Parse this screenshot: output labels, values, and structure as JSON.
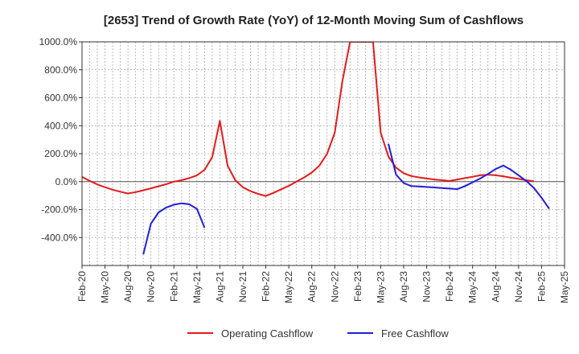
{
  "chart_data": {
    "type": "line",
    "title": "[2653]  Trend of Growth Rate (YoY) of 12-Month Moving Sum of Cashflows",
    "xlabel": "",
    "ylabel": "",
    "ylim": [
      -600,
      1000
    ],
    "y_ticks": [
      1000,
      800,
      600,
      400,
      200,
      0,
      -200,
      -400
    ],
    "y_tick_labels": [
      "1000.0%",
      "800.0%",
      "600.0%",
      "400.0%",
      "200.0%",
      "0.0%",
      "-200.0%",
      "-400.0%"
    ],
    "x_tick_labels": [
      "Feb-20",
      "May-20",
      "Aug-20",
      "Nov-20",
      "Feb-21",
      "May-21",
      "Aug-21",
      "Nov-21",
      "Feb-22",
      "May-22",
      "Aug-22",
      "Nov-22",
      "Feb-23",
      "May-23",
      "Aug-23",
      "Nov-23",
      "Feb-24",
      "May-24",
      "Aug-24",
      "Nov-24",
      "Feb-25",
      "May-25"
    ],
    "grid": true,
    "legend_position": "bottom",
    "series": [
      {
        "name": "Operating Cashflow",
        "color": "#e31a1c",
        "points": [
          [
            "2020-02",
            35
          ],
          [
            "2020-03",
            5
          ],
          [
            "2020-04",
            -20
          ],
          [
            "2020-05",
            -40
          ],
          [
            "2020-06",
            -58
          ],
          [
            "2020-07",
            -72
          ],
          [
            "2020-08",
            -85
          ],
          [
            "2020-09",
            -75
          ],
          [
            "2020-10",
            -62
          ],
          [
            "2020-11",
            -48
          ],
          [
            "2020-12",
            -33
          ],
          [
            "2021-01",
            -18
          ],
          [
            "2021-02",
            0
          ],
          [
            "2021-03",
            10
          ],
          [
            "2021-04",
            25
          ],
          [
            "2021-05",
            45
          ],
          [
            "2021-06",
            85
          ],
          [
            "2021-07",
            175
          ],
          [
            "2021-08",
            435
          ],
          [
            "2021-09",
            115
          ],
          [
            "2021-10",
            10
          ],
          [
            "2021-11",
            -40
          ],
          [
            "2021-12",
            -68
          ],
          [
            "2022-01",
            -88
          ],
          [
            "2022-02",
            -103
          ],
          [
            "2022-03",
            -80
          ],
          [
            "2022-04",
            -55
          ],
          [
            "2022-05",
            -30
          ],
          [
            "2022-06",
            0
          ],
          [
            "2022-07",
            30
          ],
          [
            "2022-08",
            65
          ],
          [
            "2022-09",
            115
          ],
          [
            "2022-10",
            200
          ],
          [
            "2022-11",
            350
          ],
          [
            "2022-12",
            720
          ],
          [
            "2023-01",
            1000
          ],
          [
            "2023-02",
            1000
          ],
          [
            "2023-03",
            1000
          ],
          [
            "2023-04",
            1000
          ],
          [
            "2023-05",
            350
          ],
          [
            "2023-06",
            180
          ],
          [
            "2023-07",
            100
          ],
          [
            "2023-08",
            60
          ],
          [
            "2023-09",
            40
          ],
          [
            "2023-10",
            30
          ],
          [
            "2023-11",
            22
          ],
          [
            "2023-12",
            15
          ],
          [
            "2024-01",
            10
          ],
          [
            "2024-02",
            5
          ],
          [
            "2024-03",
            15
          ],
          [
            "2024-04",
            25
          ],
          [
            "2024-05",
            35
          ],
          [
            "2024-06",
            45
          ],
          [
            "2024-07",
            50
          ],
          [
            "2024-08",
            45
          ],
          [
            "2024-09",
            38
          ],
          [
            "2024-10",
            28
          ],
          [
            "2024-11",
            20
          ],
          [
            "2024-12",
            10
          ],
          [
            "2025-01",
            2
          ]
        ]
      },
      {
        "name": "Free Cashflow",
        "color": "#1f1fd6",
        "segments": [
          [
            [
              "2020-10",
              -520
            ],
            [
              "2020-11",
              -300
            ],
            [
              "2020-12",
              -220
            ],
            [
              "2021-01",
              -185
            ],
            [
              "2021-02",
              -165
            ],
            [
              "2021-03",
              -155
            ],
            [
              "2021-04",
              -162
            ],
            [
              "2021-05",
              -195
            ],
            [
              "2021-06",
              -330
            ]
          ],
          [
            [
              "2023-06",
              270
            ],
            [
              "2023-07",
              50
            ],
            [
              "2023-08",
              -10
            ],
            [
              "2023-09",
              -32
            ],
            [
              "2023-10",
              -35
            ],
            [
              "2023-11",
              -38
            ],
            [
              "2023-12",
              -42
            ],
            [
              "2024-01",
              -46
            ],
            [
              "2024-02",
              -50
            ],
            [
              "2024-03",
              -54
            ],
            [
              "2024-04",
              -32
            ],
            [
              "2024-05",
              -5
            ],
            [
              "2024-06",
              22
            ],
            [
              "2024-07",
              55
            ],
            [
              "2024-08",
              90
            ],
            [
              "2024-09",
              115
            ],
            [
              "2024-10",
              85
            ],
            [
              "2024-11",
              45
            ],
            [
              "2024-12",
              5
            ],
            [
              "2025-01",
              -45
            ],
            [
              "2025-02",
              -115
            ],
            [
              "2025-03",
              -195
            ]
          ]
        ]
      }
    ]
  }
}
